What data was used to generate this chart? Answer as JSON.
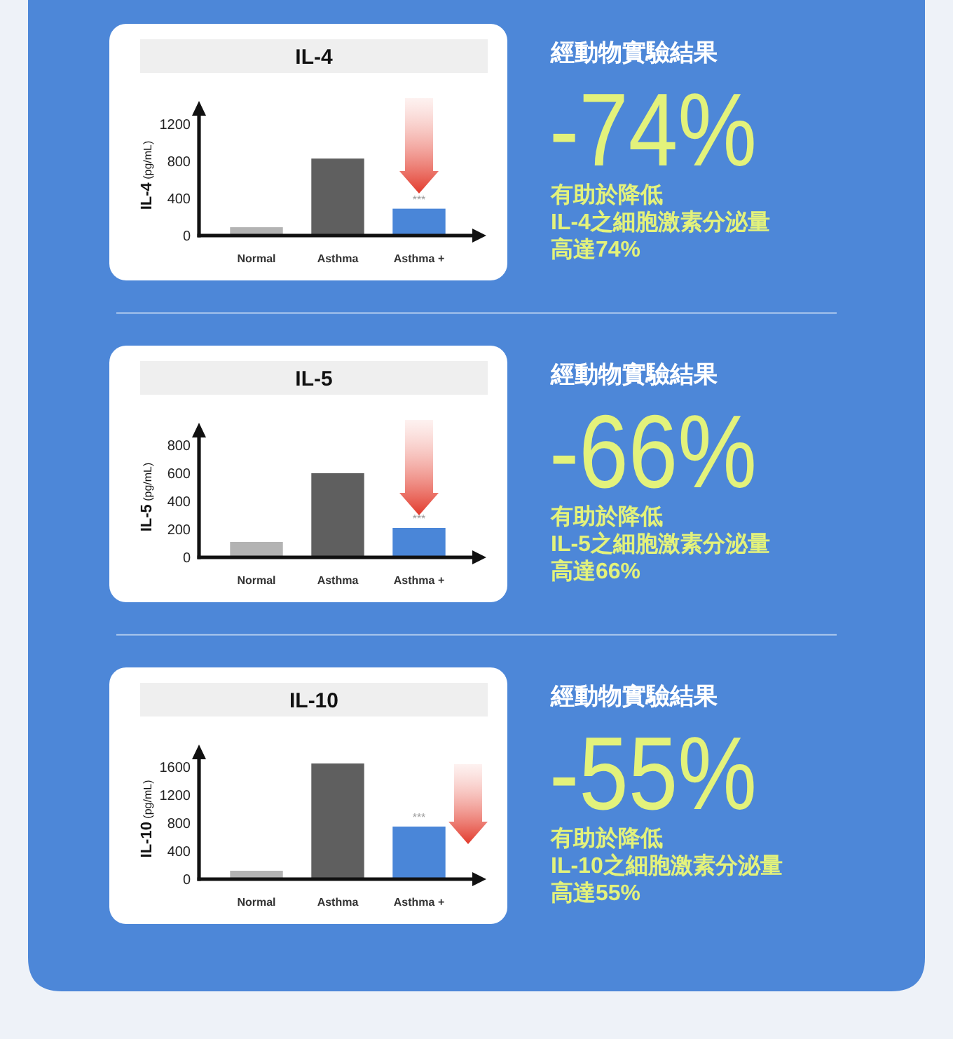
{
  "chart_data": [
    {
      "type": "bar",
      "title": "IL-4",
      "ylabel": "IL-4 (pg/mL)",
      "categories": [
        "Normal",
        "Asthma",
        "Asthma +"
      ],
      "values": [
        90,
        830,
        290
      ],
      "colors": [
        "#b3b3b3",
        "#5f5f5f",
        "#4a86d8"
      ],
      "ylim": [
        0,
        1300
      ],
      "yticks": [
        0,
        400,
        800,
        1200
      ],
      "annotations": [
        {
          "text": "***",
          "x": "Asthma +",
          "y": 290
        },
        "經動物實驗結果",
        "-74%",
        "有助於降低",
        "IL-4之細胞激素分泌量",
        "高達74%"
      ]
    },
    {
      "type": "bar",
      "title": "IL-5",
      "ylabel": "IL-5 (pg/mL)",
      "categories": [
        "Normal",
        "Asthma",
        "Asthma +"
      ],
      "values": [
        110,
        600,
        210
      ],
      "colors": [
        "#b3b3b3",
        "#5f5f5f",
        "#4a86d8"
      ],
      "ylim": [
        0,
        860
      ],
      "yticks": [
        0,
        200,
        400,
        600,
        800
      ],
      "annotations": [
        {
          "text": "***",
          "x": "Asthma +",
          "y": 210
        },
        "經動物實驗結果",
        "-66%",
        "有助於降低",
        "IL-5之細胞激素分泌量",
        "高達66%"
      ]
    },
    {
      "type": "bar",
      "title": "IL-10",
      "ylabel": "IL-10 (pg/mL)",
      "categories": [
        "Normal",
        "Asthma",
        "Asthma +"
      ],
      "values": [
        120,
        1650,
        750
      ],
      "colors": [
        "#b3b3b3",
        "#5f5f5f",
        "#4a86d8"
      ],
      "ylim": [
        0,
        1720
      ],
      "yticks": [
        0,
        400,
        800,
        1200,
        1600
      ],
      "annotations": [
        {
          "text": "***",
          "x": "Asthma +",
          "y": 750
        },
        "經動物實驗結果",
        "-55%",
        "有助於降低",
        "IL-10之細胞激素分泌量",
        "高達55%"
      ]
    }
  ]
}
